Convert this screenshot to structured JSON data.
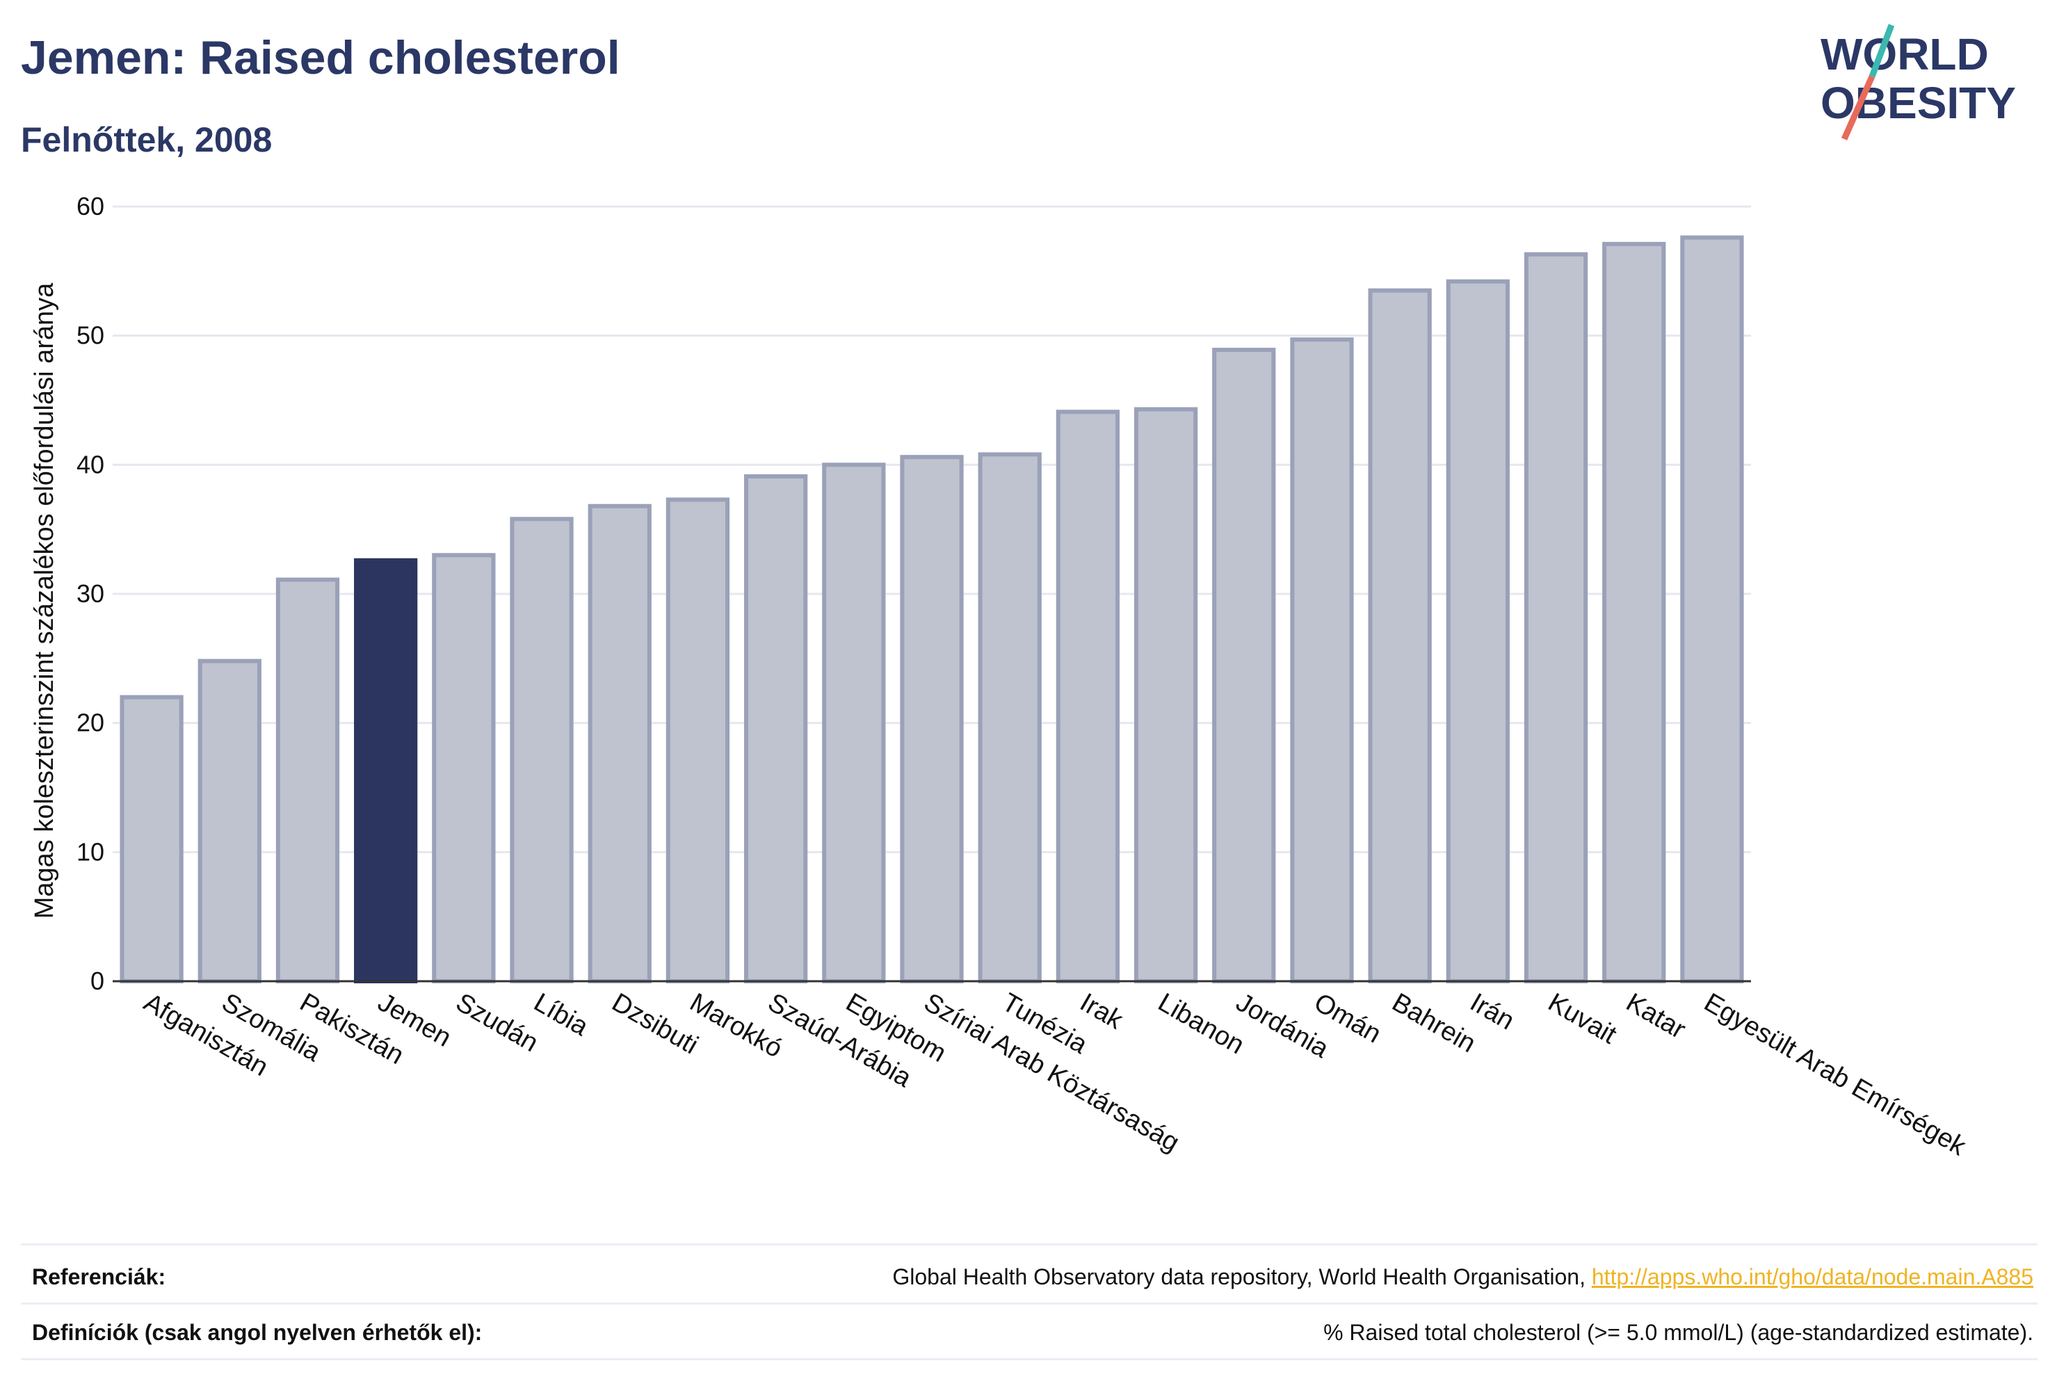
{
  "header": {
    "title": "Jemen: Raised cholesterol",
    "subtitle": "Felnőttek, 2008"
  },
  "logo": {
    "line1": "WORLD",
    "line2": "OBESITY",
    "colors": {
      "text": "#2b3866",
      "slash_top": "#3bb8b0",
      "slash_bottom": "#e86a5a"
    }
  },
  "chart_data": {
    "type": "bar",
    "title": "Jemen: Raised cholesterol",
    "subtitle": "Felnőttek, 2008",
    "xlabel": "",
    "ylabel": "Magas koleszterinszint százalékos előfordulási aránya",
    "ylim": [
      0,
      60
    ],
    "yticks": [
      0,
      10,
      20,
      30,
      40,
      50,
      60
    ],
    "grid": true,
    "highlight": "Jemen",
    "colors": {
      "bar": "#bfc3cf",
      "bar_border": "#9aa1b8",
      "highlight": "#2b3560"
    },
    "categories": [
      "Afganisztán",
      "Szomália",
      "Pakisztán",
      "Jemen",
      "Szudán",
      "Líbia",
      "Dzsibuti",
      "Marokkó",
      "Szaúd-Arábia",
      "Egyiptom",
      "Szíriai Arab Köztársaság",
      "Tunézia",
      "Irak",
      "Libanon",
      "Jordánia",
      "Omán",
      "Bahrein",
      "Irán",
      "Kuvait",
      "Katar",
      "Egyesült Arab Emírségek"
    ],
    "values": [
      22.0,
      24.8,
      31.1,
      32.6,
      33.0,
      35.8,
      36.8,
      37.3,
      39.1,
      40.0,
      40.6,
      40.8,
      44.1,
      44.3,
      48.9,
      49.7,
      53.5,
      54.2,
      56.3,
      57.1,
      57.6
    ]
  },
  "footer": {
    "references_label": "Referenciák:",
    "references_text": "Global Health Observatory data repository, World Health Organisation, ",
    "references_link": "http://apps.who.int/gho/data/node.main.A885",
    "definitions_label": "Definíciók (csak angol nyelven érhetők el):",
    "definitions_text": "% Raised total cholesterol (>= 5.0 mmol/L) (age-standardized estimate)."
  }
}
